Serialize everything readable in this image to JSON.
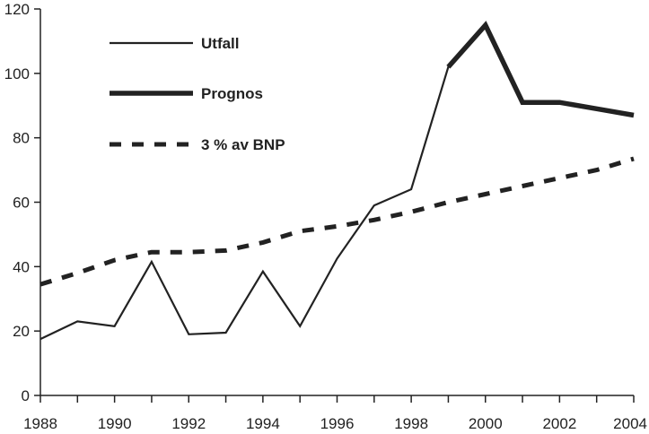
{
  "chart_data": {
    "type": "line",
    "title": "",
    "xlabel": "",
    "ylabel": "",
    "xlim": [
      1988,
      2004
    ],
    "ylim": [
      0,
      120
    ],
    "x_ticks": [
      1988,
      1990,
      1992,
      1994,
      1996,
      1998,
      2000,
      2002,
      2004
    ],
    "y_ticks": [
      0,
      20,
      40,
      60,
      80,
      100,
      120
    ],
    "x_tick_labels": [
      "1988",
      "1990",
      "1992",
      "1994",
      "1996",
      "1998",
      "2000",
      "2002",
      "2004"
    ],
    "y_tick_labels": [
      "0",
      "20",
      "40",
      "60",
      "80",
      "100",
      "120"
    ],
    "grid": false,
    "legend_position": "top-left",
    "series": [
      {
        "name": "Utfall",
        "style": "thin-solid",
        "color": "#222222",
        "points": [
          [
            1988,
            17.5
          ],
          [
            1989,
            23
          ],
          [
            1990,
            21.5
          ],
          [
            1991,
            41.5
          ],
          [
            1992,
            19
          ],
          [
            1993,
            19.5
          ],
          [
            1994,
            38.5
          ],
          [
            1995,
            21.5
          ],
          [
            1996,
            42.5
          ],
          [
            1997,
            59
          ],
          [
            1998,
            64
          ],
          [
            1999,
            102
          ],
          [
            2000,
            115
          ],
          [
            2001,
            91
          ]
        ]
      },
      {
        "name": "Prognos",
        "style": "thick-solid",
        "color": "#222222",
        "points": [
          [
            1999,
            102
          ],
          [
            2000,
            115
          ],
          [
            2001,
            91
          ],
          [
            2002,
            91
          ],
          [
            2003,
            89
          ],
          [
            2004,
            87
          ]
        ]
      },
      {
        "name": "3 % av BNP",
        "style": "dashed",
        "color": "#222222",
        "points": [
          [
            1988,
            34.5
          ],
          [
            1989,
            38
          ],
          [
            1990,
            42
          ],
          [
            1991,
            44.5
          ],
          [
            1992,
            44.5
          ],
          [
            1993,
            45
          ],
          [
            1994,
            47.5
          ],
          [
            1995,
            51
          ],
          [
            1996,
            52.5
          ],
          [
            1997,
            54.5
          ],
          [
            1998,
            57
          ],
          [
            1999,
            60
          ],
          [
            2000,
            62.5
          ],
          [
            2001,
            65
          ],
          [
            2002,
            67.5
          ],
          [
            2003,
            70
          ],
          [
            2004,
            73.5
          ]
        ]
      }
    ]
  }
}
